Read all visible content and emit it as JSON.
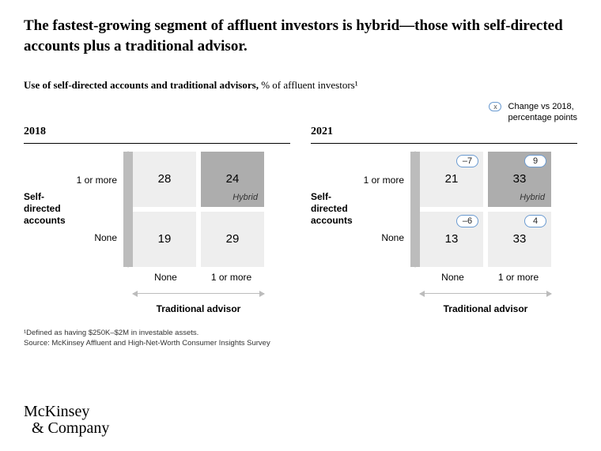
{
  "headline": "The fastest-growing segment of affluent investors is hybrid—those with self-directed accounts plus a traditional advisor.",
  "subtitle_bold": "Use of self-directed accounts and traditional advisors,",
  "subtitle_rest": " % of affluent investors¹",
  "legend": {
    "swatch": "x",
    "text_l1": "Change vs 2018,",
    "text_l2": "percentage points"
  },
  "y_axis_l1": "Self-",
  "y_axis_l2": "directed",
  "y_axis_l3": "accounts",
  "row_top": "1 or more",
  "row_bottom": "None",
  "col_left": "None",
  "col_right": "1 or more",
  "x_axis_label": "Traditional advisor",
  "colors": {
    "cell_light": "#eeeeee",
    "cell_dark": "#adadad",
    "arrow": "#bcbcbc",
    "badge_border": "#6b9bd1",
    "white": "#ffffff"
  },
  "panels": {
    "left": {
      "year": "2018",
      "cells": [
        {
          "val": "28"
        },
        {
          "val": "24",
          "sub": "Hybrid",
          "dark": true
        },
        {
          "val": "19"
        },
        {
          "val": "29"
        }
      ]
    },
    "right": {
      "year": "2021",
      "cells": [
        {
          "val": "21",
          "badge": "–7"
        },
        {
          "val": "33",
          "badge": "9",
          "sub": "Hybrid",
          "dark": true
        },
        {
          "val": "13",
          "badge": "–6"
        },
        {
          "val": "33",
          "badge": "4"
        }
      ]
    }
  },
  "footnote1": "¹Defined as having $250K–$2M in investable assets.",
  "footnote2": "Source: McKinsey Affluent and High-Net-Worth Consumer Insights Survey",
  "logo_l1": "McKinsey",
  "logo_l2": "& Company"
}
